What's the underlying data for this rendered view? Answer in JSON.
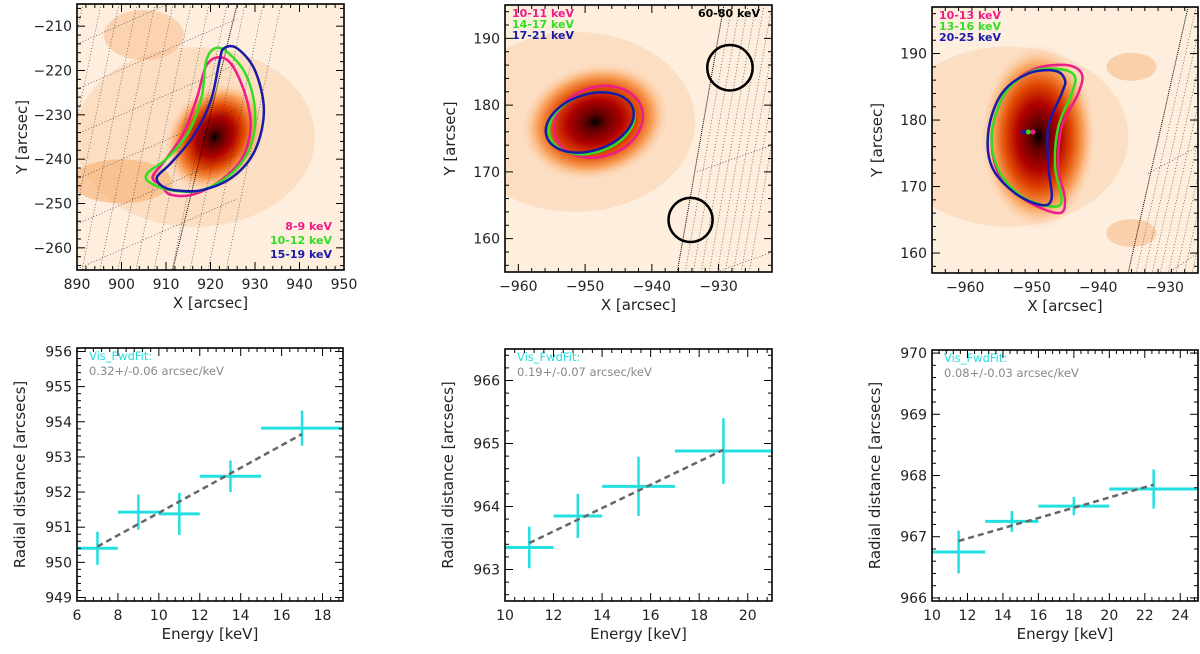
{
  "colors": {
    "magenta": "#ee1c8a",
    "green": "#33dd22",
    "blue": "#1a1aaa",
    "cyan": "#22e0e0",
    "fit_line": "#666666",
    "annot_gray": "#888888",
    "axis": "#000000"
  },
  "chart_data": [
    {
      "id": "map-1",
      "type": "heatmap",
      "xlabel": "X [arcsec]",
      "ylabel": "Y [arcsec]",
      "xlim": [
        890,
        950
      ],
      "ylim": [
        -265,
        -205
      ],
      "xticks": [
        "890",
        "900",
        "910",
        "920",
        "930",
        "940",
        "950"
      ],
      "xtick_values": [
        890,
        900,
        910,
        920,
        930,
        940,
        950
      ],
      "yticks": [
        "-210",
        "-220",
        "-230",
        "-240",
        "-250",
        "-260"
      ],
      "ytick_values": [
        -210,
        -220,
        -230,
        -240,
        -250,
        -260
      ],
      "legend_position": "bottom-right",
      "legend": [
        {
          "label": "8-9 keV",
          "color": "magenta"
        },
        {
          "label": "10-12 keV",
          "color": "green"
        },
        {
          "label": "15-19 keV",
          "color": "blue"
        }
      ],
      "peak": [
        921,
        -235
      ],
      "contours": [
        {
          "name": "8-9 keV",
          "color": "magenta",
          "points": [
            [
              909,
              -246
            ],
            [
              907,
              -244
            ],
            [
              910,
              -240
            ],
            [
              914,
              -234
            ],
            [
              917,
              -226
            ],
            [
              919,
              -219
            ],
            [
              922,
              -217
            ],
            [
              925,
              -219
            ],
            [
              928,
              -226
            ],
            [
              929,
              -233
            ],
            [
              927,
              -240
            ],
            [
              922,
              -245
            ],
            [
              916,
              -248
            ],
            [
              911,
              -248
            ]
          ]
        },
        {
          "name": "10-12 keV",
          "color": "green",
          "points": [
            [
              906,
              -245
            ],
            [
              906,
              -243
            ],
            [
              910,
              -240
            ],
            [
              915,
              -234
            ],
            [
              918,
              -226
            ],
            [
              919,
              -218
            ],
            [
              921,
              -215
            ],
            [
              924,
              -216
            ],
            [
              928,
              -221
            ],
            [
              930,
              -229
            ],
            [
              929,
              -237
            ],
            [
              925,
              -243
            ],
            [
              918,
              -247
            ],
            [
              911,
              -247
            ]
          ]
        },
        {
          "name": "15-19 keV",
          "color": "blue",
          "points": [
            [
              909,
              -246
            ],
            [
              908,
              -244
            ],
            [
              911,
              -241
            ],
            [
              916,
              -235
            ],
            [
              920,
              -227
            ],
            [
              922,
              -218
            ],
            [
              923,
              -215
            ],
            [
              926,
              -215
            ],
            [
              930,
              -220
            ],
            [
              932,
              -229
            ],
            [
              930,
              -238
            ],
            [
              925,
              -244
            ],
            [
              918,
              -247
            ],
            [
              912,
              -247
            ]
          ]
        }
      ]
    },
    {
      "id": "map-2",
      "type": "heatmap",
      "xlabel": "X [arcsec]",
      "ylabel": "Y [arcsec]",
      "xlim": [
        -962,
        -922
      ],
      "ylim": [
        155,
        195
      ],
      "xticks": [
        "-960",
        "-950",
        "-940",
        "-930"
      ],
      "xtick_values": [
        -960,
        -950,
        -940,
        -930
      ],
      "yticks": [
        "160",
        "170",
        "180",
        "190"
      ],
      "ytick_values": [
        160,
        170,
        180,
        190
      ],
      "legend_position": "top-left",
      "legend": [
        {
          "label": "10-11 keV",
          "color": "magenta"
        },
        {
          "label": "14-17 keV",
          "color": "green"
        },
        {
          "label": "17-21 keV",
          "color": "blue"
        }
      ],
      "annotation_right": "60-80 keV",
      "peak": [
        -948.5,
        177.5
      ],
      "contours": [
        {
          "name": "10-11 keV",
          "color": "magenta",
          "ellipse": [
            -948,
            177.5,
            6.8,
            5.2,
            -18
          ]
        },
        {
          "name": "14-17 keV",
          "color": "green",
          "ellipse": [
            -949,
            177.3,
            6.6,
            4.4,
            -18
          ]
        },
        {
          "name": "17-21 keV",
          "color": "blue",
          "ellipse": [
            -949.3,
            177.4,
            6.8,
            4.2,
            -18
          ]
        }
      ],
      "black_circles": [
        [
          -928.3,
          185.6,
          3.4
        ],
        [
          -934.2,
          162.8,
          3.3
        ]
      ]
    },
    {
      "id": "map-3",
      "type": "heatmap",
      "xlabel": "X [arcsec]",
      "ylabel": "Y [arcsec]",
      "xlim": [
        -965,
        -925
      ],
      "ylim": [
        157,
        197
      ],
      "xticks": [
        "-960",
        "-950",
        "-940",
        "-930"
      ],
      "xtick_values": [
        -960,
        -950,
        -940,
        -930
      ],
      "yticks": [
        "160",
        "170",
        "180",
        "190"
      ],
      "ytick_values": [
        160,
        170,
        180,
        190
      ],
      "legend_position": "top-left",
      "legend": [
        {
          "label": "10-13 keV",
          "color": "magenta"
        },
        {
          "label": "13-16 keV",
          "color": "green"
        },
        {
          "label": "20-25 keV",
          "color": "blue"
        }
      ],
      "peak": [
        -950.5,
        177.5
      ],
      "centroids": [
        [
          -951.2,
          178.2,
          "blue"
        ],
        [
          -950.5,
          178.2,
          "green"
        ],
        [
          -949.8,
          178.2,
          "magenta"
        ]
      ],
      "contours": [
        {
          "name": "10-13 keV",
          "color": "magenta",
          "points": [
            [
              -946,
              166
            ],
            [
              -951,
              168
            ],
            [
              -955,
              172
            ],
            [
              -956,
              178
            ],
            [
              -954,
              184
            ],
            [
              -950,
              187.5
            ],
            [
              -945,
              188.3
            ],
            [
              -942.5,
              187
            ],
            [
              -943,
              184
            ],
            [
              -945.5,
              179
            ],
            [
              -946,
              173
            ],
            [
              -945,
              168
            ]
          ]
        },
        {
          "name": "13-16 keV",
          "color": "green",
          "points": [
            [
              -947,
              167
            ],
            [
              -951.5,
              168.5
            ],
            [
              -955,
              172.5
            ],
            [
              -956,
              178
            ],
            [
              -954,
              184
            ],
            [
              -950,
              187.3
            ],
            [
              -945.5,
              187.6
            ],
            [
              -943.5,
              186.5
            ],
            [
              -944,
              184
            ],
            [
              -946,
              179
            ],
            [
              -946.5,
              173
            ],
            [
              -945.5,
              168
            ]
          ]
        },
        {
          "name": "20-25 keV",
          "color": "blue",
          "points": [
            [
              -948.5,
              167.2
            ],
            [
              -952.5,
              169
            ],
            [
              -956,
              173
            ],
            [
              -956.5,
              178.5
            ],
            [
              -954.5,
              184
            ],
            [
              -950.5,
              187
            ],
            [
              -946.5,
              187.4
            ],
            [
              -945,
              186
            ],
            [
              -945.5,
              184
            ],
            [
              -947.5,
              179
            ],
            [
              -947.5,
              173
            ],
            [
              -947,
              168.3
            ]
          ]
        }
      ]
    },
    {
      "id": "plot-1",
      "type": "scatter",
      "xlabel": "Energy [keV]",
      "ylabel": "Radial distance [arcsecs]",
      "xlim": [
        6,
        19
      ],
      "ylim": [
        948.9,
        956.1
      ],
      "xticks": [
        "6",
        "8",
        "10",
        "12",
        "14",
        "16",
        "18"
      ],
      "xtick_values": [
        6,
        8,
        10,
        12,
        14,
        16,
        18
      ],
      "yticks": [
        "949",
        "950",
        "951",
        "952",
        "953",
        "954",
        "955",
        "956"
      ],
      "ytick_values": [
        949,
        950,
        951,
        952,
        953,
        954,
        955,
        956
      ],
      "method_label": "Vis_FwdFit:",
      "slope_label": "0.32+/-0.06 arcsec/keV",
      "points": [
        {
          "x": 7,
          "xlo": 6,
          "xhi": 8,
          "y": 950.4,
          "yerr": 0.47
        },
        {
          "x": 9,
          "xlo": 8,
          "xhi": 10,
          "y": 951.43,
          "yerr": 0.5
        },
        {
          "x": 11,
          "xlo": 10,
          "xhi": 12,
          "y": 951.38,
          "yerr": 0.6
        },
        {
          "x": 13.5,
          "xlo": 12,
          "xhi": 15,
          "y": 952.45,
          "yerr": 0.45
        },
        {
          "x": 17,
          "xlo": 15,
          "xhi": 19,
          "y": 953.82,
          "yerr": 0.5
        }
      ],
      "fit": {
        "x": [
          7,
          17
        ],
        "y": [
          950.45,
          953.65
        ]
      }
    },
    {
      "id": "plot-2",
      "type": "scatter",
      "xlabel": "Energy [keV]",
      "ylabel": "Radial distance [arcsecs]",
      "xlim": [
        10,
        21
      ],
      "ylim": [
        962.5,
        966.5
      ],
      "xticks": [
        "10",
        "12",
        "14",
        "16",
        "18",
        "20"
      ],
      "xtick_values": [
        10,
        12,
        14,
        16,
        18,
        20
      ],
      "yticks": [
        "963",
        "964",
        "965",
        "966"
      ],
      "ytick_values": [
        963,
        964,
        965,
        966
      ],
      "method_label": "Vis_FwdFit:",
      "slope_label": "0.19+/-0.07 arcsec/keV",
      "points": [
        {
          "x": 11,
          "xlo": 10,
          "xhi": 12,
          "y": 963.35,
          "yerr": 0.33
        },
        {
          "x": 13,
          "xlo": 12,
          "xhi": 14,
          "y": 963.85,
          "yerr": 0.35
        },
        {
          "x": 15.5,
          "xlo": 14,
          "xhi": 17,
          "y": 964.32,
          "yerr": 0.47
        },
        {
          "x": 19,
          "xlo": 17,
          "xhi": 21,
          "y": 964.88,
          "yerr": 0.52
        }
      ],
      "fit": {
        "x": [
          11,
          19
        ],
        "y": [
          963.42,
          964.9
        ]
      }
    },
    {
      "id": "plot-3",
      "type": "scatter",
      "xlabel": "Energy [keV]",
      "ylabel": "Radial distance [arcsecs]",
      "xlim": [
        10,
        25
      ],
      "ylim": [
        965.95,
        970.05
      ],
      "xticks": [
        "10",
        "12",
        "14",
        "16",
        "18",
        "20",
        "22",
        "24"
      ],
      "xtick_values": [
        10,
        12,
        14,
        16,
        18,
        20,
        22,
        24
      ],
      "yticks": [
        "966",
        "967",
        "968",
        "969",
        "970"
      ],
      "ytick_values": [
        966,
        967,
        968,
        969,
        970
      ],
      "method_label": "Vis_FwdFit:",
      "slope_label": "0.08+/-0.03 arcsec/keV",
      "points": [
        {
          "x": 11.5,
          "xlo": 10,
          "xhi": 13,
          "y": 966.75,
          "yerr": 0.35
        },
        {
          "x": 14.5,
          "xlo": 13,
          "xhi": 16,
          "y": 967.25,
          "yerr": 0.17
        },
        {
          "x": 18,
          "xlo": 16,
          "xhi": 20,
          "y": 967.5,
          "yerr": 0.15
        },
        {
          "x": 22.5,
          "xlo": 20,
          "xhi": 25,
          "y": 967.78,
          "yerr": 0.32
        }
      ],
      "fit": {
        "x": [
          11.5,
          22.5
        ],
        "y": [
          966.93,
          967.85
        ]
      }
    }
  ]
}
